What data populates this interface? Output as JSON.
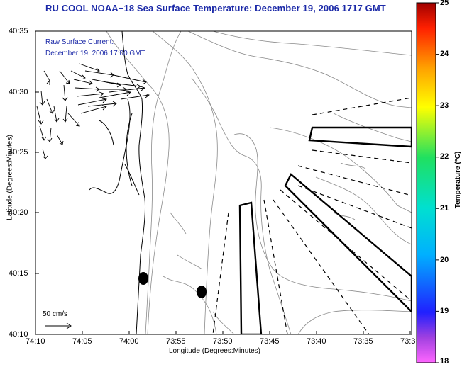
{
  "title": "RU COOL  NOAA−18  Sea Surface Temperature:  December 19, 2006 1717 GMT",
  "annotation": {
    "line1": "Raw Surface Current:",
    "line2": "December 19, 2006 17:00 GMT"
  },
  "axes": {
    "xlabel": "Longitude (Degrees:Minutes)",
    "ylabel": "Latitude (Degrees:Minutes)",
    "xticks": [
      "74:10",
      "74:05",
      "74:00",
      "73:55",
      "73:50",
      "73:45",
      "73:40",
      "73:35",
      "73:3"
    ],
    "yticks": [
      "40:35",
      "40:30",
      "40:25",
      "40:20",
      "40:15",
      "40:10"
    ]
  },
  "scale_label": "50 cm/s",
  "colorbar": {
    "label": "Temperature (°C)",
    "ticks": [
      "25",
      "24",
      "23",
      "22",
      "21",
      "20",
      "19",
      "18"
    ],
    "min": 18,
    "max": 25
  },
  "colors": {
    "title": "#1c2aa8",
    "coast": "#000000",
    "bathymetry": "#8a8a8a"
  }
}
